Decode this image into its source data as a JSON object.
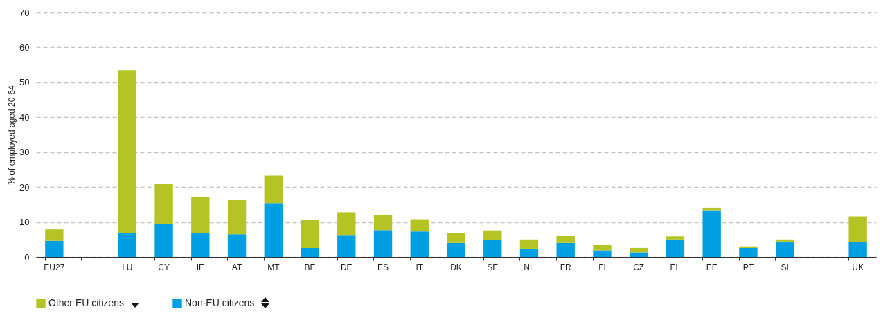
{
  "chart_data": {
    "type": "bar",
    "stacked": true,
    "ylabel": "% of employed aged 20-64",
    "categories": [
      "EU27",
      null,
      "LU",
      "CY",
      "IE",
      "AT",
      "MT",
      "BE",
      "DE",
      "ES",
      "IT",
      "DK",
      "SE",
      "NL",
      "FR",
      "FI",
      "CZ",
      "EL",
      "EE",
      "PT",
      "SI",
      null,
      "UK"
    ],
    "series": [
      {
        "name": "Non-EU citizens",
        "color": "#009fe3",
        "values": [
          4.6,
          null,
          6.9,
          9.4,
          6.9,
          6.5,
          15.4,
          2.6,
          6.3,
          7.7,
          7.3,
          4.0,
          4.9,
          2.4,
          4.0,
          1.9,
          1.3,
          5.0,
          13.4,
          2.6,
          4.4,
          null,
          4.2
        ]
      },
      {
        "name": "Other EU citizens",
        "color": "#b5c424",
        "values": [
          3.3,
          null,
          46.6,
          11.5,
          10.2,
          9.8,
          7.9,
          8.0,
          6.5,
          4.3,
          3.5,
          2.9,
          2.7,
          2.6,
          2.1,
          1.5,
          1.3,
          0.9,
          0.7,
          0.4,
          0.6,
          null,
          7.4
        ]
      }
    ],
    "ylim": [
      0,
      70
    ],
    "yticks": [
      0,
      10,
      20,
      30,
      40,
      50,
      60,
      70
    ],
    "grid": "y",
    "legend": "bottom"
  }
}
